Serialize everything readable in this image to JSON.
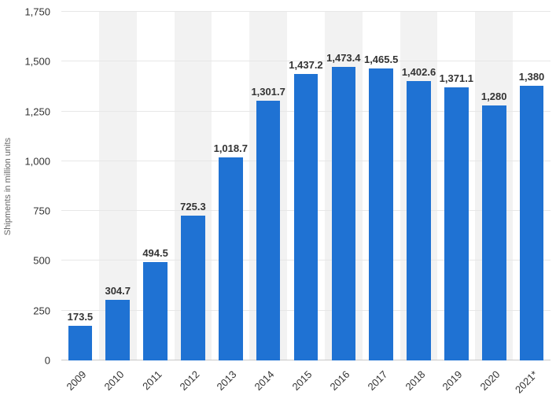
{
  "chart_data": {
    "type": "bar",
    "title": "",
    "xlabel": "",
    "ylabel": "Shipments in million units",
    "categories": [
      "2009",
      "2010",
      "2011",
      "2012",
      "2013",
      "2014",
      "2015",
      "2016",
      "2017",
      "2018",
      "2019",
      "2020",
      "2021*"
    ],
    "values": [
      173.5,
      304.7,
      494.5,
      725.3,
      1018.7,
      1301.7,
      1437.2,
      1473.4,
      1465.5,
      1402.6,
      1371.1,
      1280,
      1380
    ],
    "value_labels": [
      "173.5",
      "304.7",
      "494.5",
      "725.3",
      "1,018.7",
      "1,301.7",
      "1,437.2",
      "1,473.4",
      "1,465.5",
      "1,402.6",
      "1,371.1",
      "1,280",
      "1,380"
    ],
    "ylim": [
      0,
      1750
    ],
    "yticks": [
      0,
      250,
      500,
      750,
      1000,
      1250,
      1500,
      1750
    ],
    "ytick_labels": [
      "0",
      "250",
      "500",
      "750",
      "1,000",
      "1,250",
      "1,500",
      "1,750"
    ],
    "grid": true,
    "legend": false,
    "bar_color": "#1f72d3",
    "band_color": "#f2f2f2",
    "background": "#ffffff"
  }
}
